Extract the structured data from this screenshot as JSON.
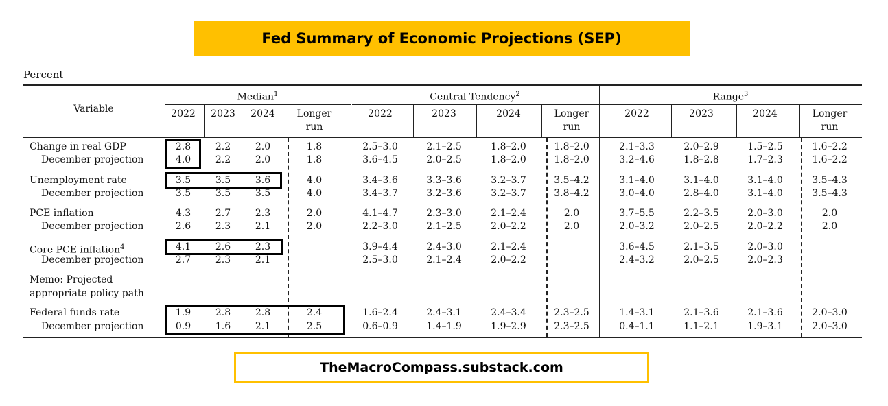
{
  "title": "Fed Summary of Economic Projections (SEP)",
  "unit_label": "Percent",
  "footer": "TheMacroCompass.substack.com",
  "header": {
    "variable": "Variable",
    "groups": [
      "Median",
      "Central Tendency",
      "Range"
    ],
    "group_sups": [
      "1",
      "2",
      "3"
    ],
    "years": [
      "2022",
      "2023",
      "2024"
    ],
    "longer_run": [
      "Longer",
      "run"
    ]
  },
  "rows": [
    {
      "label": "Change in real GDP",
      "sup": "",
      "sub": "December projection",
      "median": [
        [
          "2.8",
          "2.2",
          "2.0",
          "1.8"
        ],
        [
          "4.0",
          "2.2",
          "2.0",
          "1.8"
        ]
      ],
      "central": [
        [
          "2.5–3.0",
          "2.1–2.5",
          "1.8–2.0",
          "1.8–2.0"
        ],
        [
          "3.6–4.5",
          "2.0–2.5",
          "1.8–2.0",
          "1.8–2.0"
        ]
      ],
      "range": [
        [
          "2.1–3.3",
          "2.0–2.9",
          "1.5–2.5",
          "1.6–2.2"
        ],
        [
          "3.2–4.6",
          "1.8–2.8",
          "1.7–2.3",
          "1.6–2.2"
        ]
      ]
    },
    {
      "label": "Unemployment rate",
      "sup": "",
      "sub": "December projection",
      "median": [
        [
          "3.5",
          "3.5",
          "3.6",
          "4.0"
        ],
        [
          "3.5",
          "3.5",
          "3.5",
          "4.0"
        ]
      ],
      "central": [
        [
          "3.4–3.6",
          "3.3–3.6",
          "3.2–3.7",
          "3.5–4.2"
        ],
        [
          "3.4–3.7",
          "3.2–3.6",
          "3.2–3.7",
          "3.8–4.2"
        ]
      ],
      "range": [
        [
          "3.1–4.0",
          "3.1–4.0",
          "3.1–4.0",
          "3.5–4.3"
        ],
        [
          "3.0–4.0",
          "2.8–4.0",
          "3.1–4.0",
          "3.5–4.3"
        ]
      ]
    },
    {
      "label": "PCE inflation",
      "sup": "",
      "sub": "December projection",
      "median": [
        [
          "4.3",
          "2.7",
          "2.3",
          "2.0"
        ],
        [
          "2.6",
          "2.3",
          "2.1",
          "2.0"
        ]
      ],
      "central": [
        [
          "4.1–4.7",
          "2.3–3.0",
          "2.1–2.4",
          "2.0"
        ],
        [
          "2.2–3.0",
          "2.1–2.5",
          "2.0–2.2",
          "2.0"
        ]
      ],
      "range": [
        [
          "3.7–5.5",
          "2.2–3.5",
          "2.0–3.0",
          "2.0"
        ],
        [
          "2.0–3.2",
          "2.0–2.5",
          "2.0–2.2",
          "2.0"
        ]
      ]
    },
    {
      "label": "Core PCE inflation",
      "sup": "4",
      "sub": "December projection",
      "median": [
        [
          "4.1",
          "2.6",
          "2.3",
          ""
        ],
        [
          "2.7",
          "2.3",
          "2.1",
          ""
        ]
      ],
      "central": [
        [
          "3.9–4.4",
          "2.4–3.0",
          "2.1–2.4",
          ""
        ],
        [
          "2.5–3.0",
          "2.1–2.4",
          "2.0–2.2",
          ""
        ]
      ],
      "range": [
        [
          "3.6–4.5",
          "2.1–3.5",
          "2.0–3.0",
          ""
        ],
        [
          "2.4–3.2",
          "2.0–2.5",
          "2.0–2.3",
          ""
        ]
      ]
    }
  ],
  "memo": [
    "Memo: Projected",
    "appropriate policy path"
  ],
  "fed_funds": {
    "label": "Federal funds rate",
    "sub": "December projection",
    "median": [
      [
        "1.9",
        "2.8",
        "2.8",
        "2.4"
      ],
      [
        "0.9",
        "1.6",
        "2.1",
        "2.5"
      ]
    ],
    "central": [
      [
        "1.6–2.4",
        "2.4–3.1",
        "2.4–3.4",
        "2.3–2.5"
      ],
      [
        "0.6–0.9",
        "1.4–1.9",
        "1.9–2.9",
        "2.3–2.5"
      ]
    ],
    "range": [
      [
        "1.4–3.1",
        "2.1–3.6",
        "2.1–3.6",
        "2.0–3.0"
      ],
      [
        "0.4–1.1",
        "1.1–2.1",
        "1.9–3.1",
        "2.0–3.0"
      ]
    ]
  }
}
